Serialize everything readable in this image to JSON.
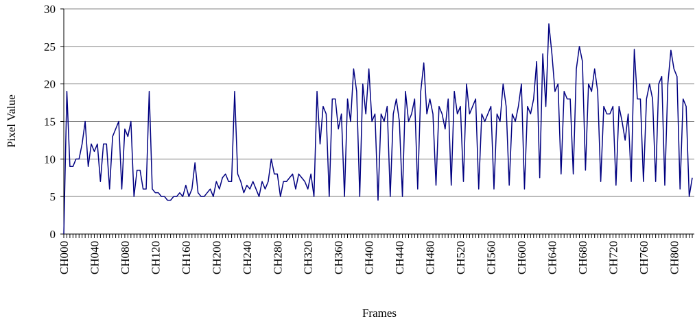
{
  "chart_data": {
    "type": "line",
    "y_label": "Pixel Value",
    "x_label": "Frames",
    "categories": [
      "CH000",
      null,
      null,
      null,
      null,
      null,
      null,
      null,
      null,
      null,
      "CH040",
      null,
      null,
      null,
      null,
      null,
      null,
      null,
      null,
      null,
      "CH080",
      null,
      null,
      null,
      null,
      null,
      null,
      null,
      null,
      null,
      "CH120",
      null,
      null,
      null,
      null,
      null,
      null,
      null,
      null,
      null,
      "CH160",
      null,
      null,
      null,
      null,
      null,
      null,
      null,
      null,
      null,
      "CH200",
      null,
      null,
      null,
      null,
      null,
      null,
      null,
      null,
      null,
      "CH240",
      null,
      null,
      null,
      null,
      null,
      null,
      null,
      null,
      null,
      "CH280",
      null,
      null,
      null,
      null,
      null,
      null,
      null,
      null,
      null,
      "CH320",
      null,
      null,
      null,
      null,
      null,
      null,
      null,
      null,
      null,
      "CH360",
      null,
      null,
      null,
      null,
      null,
      null,
      null,
      null,
      null,
      "CH400",
      null,
      null,
      null,
      null,
      null,
      null,
      null,
      null,
      null,
      "CH440",
      null,
      null,
      null,
      null,
      null,
      null,
      null,
      null,
      null,
      "CH480",
      null,
      null,
      null,
      null,
      null,
      null,
      null,
      null,
      null,
      "CH520",
      null,
      null,
      null,
      null,
      null,
      null,
      null,
      null,
      null,
      "CH560",
      null,
      null,
      null,
      null,
      null,
      null,
      null,
      null,
      null,
      "CH600",
      null,
      null,
      null,
      null,
      null,
      null,
      null,
      null,
      null,
      "CH640",
      null,
      null,
      null,
      null,
      null,
      null,
      null,
      null,
      null,
      "CH680",
      null,
      null,
      null,
      null,
      null,
      null,
      null,
      null,
      null,
      "CH720",
      null,
      null,
      null,
      null,
      null,
      null,
      null,
      null,
      null,
      "CH760",
      null,
      null,
      null,
      null,
      null,
      null,
      null,
      null,
      null,
      "CH800",
      null,
      null,
      null,
      null,
      null,
      null
    ],
    "series": [
      {
        "color": "#000080",
        "values": [
          0,
          19,
          9,
          9,
          10,
          10,
          12,
          15,
          9,
          12,
          11,
          12,
          7,
          12,
          12,
          6,
          13,
          14,
          15,
          6,
          14,
          13,
          15,
          5,
          8.5,
          8.5,
          6,
          6,
          19,
          6,
          5.5,
          5.5,
          5,
          5,
          4.5,
          4.5,
          5,
          5,
          5.5,
          5,
          6.5,
          5,
          6,
          9.5,
          5.5,
          5,
          5,
          5.5,
          6,
          5,
          7,
          6,
          7.5,
          8,
          7,
          7,
          19,
          8,
          7,
          5.5,
          6.5,
          6,
          7,
          6,
          5,
          7,
          6,
          7,
          10,
          8,
          8,
          5,
          7,
          7,
          7.5,
          8,
          6,
          8,
          7.5,
          7,
          6,
          8,
          5,
          19,
          12,
          17,
          16,
          5,
          18,
          18,
          14,
          16,
          5,
          18,
          15,
          22,
          19,
          5,
          20,
          16,
          22,
          15,
          16,
          4.5,
          16,
          15,
          17,
          5,
          16,
          18,
          15,
          5,
          19,
          15,
          16,
          18,
          6,
          19,
          22.8,
          16,
          18,
          16,
          6.5,
          17,
          16,
          14,
          18,
          6.5,
          19,
          16,
          17,
          7,
          20,
          16,
          17,
          18,
          6,
          16,
          15,
          16,
          17,
          6,
          16,
          15,
          20,
          17,
          6.5,
          16,
          15,
          17,
          20,
          6,
          17,
          16,
          18,
          23,
          7.5,
          24,
          17,
          28,
          24,
          19,
          20,
          8,
          19,
          18,
          18,
          8,
          22,
          25,
          23,
          8.5,
          20,
          19,
          22,
          19,
          7,
          17,
          16,
          16,
          17,
          6.5,
          17,
          15,
          12.5,
          16,
          7,
          24.6,
          18,
          18,
          7,
          18,
          20,
          18,
          7,
          20,
          21,
          6.5,
          20,
          24.5,
          22,
          21,
          6,
          18,
          17,
          5,
          7.5
        ]
      }
    ],
    "ylim": [
      0,
      30
    ],
    "yticks": [
      0,
      5,
      10,
      15,
      20,
      25,
      30
    ],
    "grid": true
  }
}
